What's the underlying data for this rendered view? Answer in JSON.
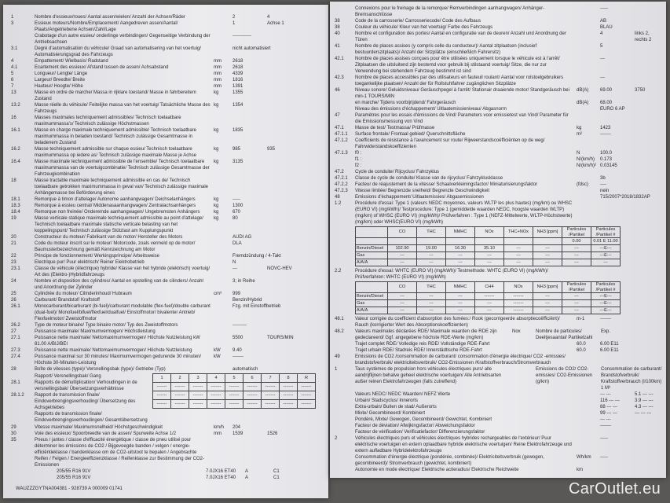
{
  "left": {
    "rows": [
      {
        "n": "1",
        "t": "Nombre d'essieux/roues/ Aantal assen/wielen/ Anzahl der Achsen/Räder",
        "u": "",
        "v": "2",
        "v2": "4"
      },
      {
        "n": "3",
        "t": "Essieux moteurs/Nombre/Emplacement/ Aangedreven assen/Aantal/ Plaats/Angetriebene Achsen/Zahl/Lage",
        "u": "",
        "v": "1",
        "v2": "Achse 1"
      },
      {
        "n": "",
        "t": "Crabotage d'un autre essieu/ onderlinge verbindingen/ Gegenseitige Verbindung der Antriebsachsen",
        "u": "",
        "v": "------------",
        "v2": ""
      },
      {
        "n": "3.1",
        "t": "Degré d'automatisation du véhicule/ Graad van automatisering van het voertuig/ Automatisierungsgrad des Fahrzeugs",
        "u": "",
        "v": "nicht automatisiert",
        "v2": ""
      },
      {
        "n": "4",
        "t": "Empattement/ Wielbasis/ Radstand",
        "u": "mm",
        "v": "2618",
        "v2": ""
      },
      {
        "n": "4.1",
        "t": "Ecartement des essieux/ Afstand tussen de assen/ Achsabstand",
        "u": "mm",
        "v": "2618",
        "v2": ""
      },
      {
        "n": "5",
        "t": "Longueur/ Lengte/ Länge",
        "u": "mm",
        "v": "4339",
        "v2": ""
      },
      {
        "n": "6",
        "t": "Largeur/ Breedte/ Breite",
        "u": "mm",
        "v": "1816",
        "v2": ""
      },
      {
        "n": "7",
        "t": "Hauteur/ Hoogte/ Höhe",
        "u": "mm",
        "v": "1391",
        "v2": ""
      },
      {
        "n": "13",
        "t": "Masse en ordre de marche/ Massa in rijklare toestand/ Masse in fahrbereitem Zustand",
        "u": "kg",
        "v": "1355",
        "v2": ""
      },
      {
        "n": "13.2",
        "t": "Masse réelle du véhicule/ Feitelijke massa van het voertuig/ Tatsächliche Masse des Fahrzeugs",
        "u": "kg",
        "v": "1354",
        "v2": ""
      },
      {
        "n": "16",
        "t": "Masses maximales techniquement admissibles/ Technisch toelaatbare maximummassa's/ Technisch zulässige Höchstmassen",
        "u": "",
        "v": "",
        "v2": ""
      },
      {
        "n": "16.1",
        "t": "Masse en charge maximale techniquement admissible/ Technisch toelaatbare maximummassa in beladen toestand/ Technisch zulässige Gesamtmasse in beladenem Zustand",
        "u": "kg",
        "v": "1835",
        "v2": ""
      },
      {
        "n": "16.2",
        "t": "Masse techniquement admissible sur chaque essieu/ Technisch toelaatbare maximummassa op iedere as/ Technisch zulässige maximale Masse je Achse",
        "u": "kg",
        "v": "985",
        "v2": "935"
      },
      {
        "n": "16.4",
        "t": "Masse maximale techniquement admissible de l'ensemble/ Technisch toelaatbare maximummassa van de voertuigcombinatie/ Technisch zulässige Gesamtmasse der Fahrzeugkombination",
        "u": "kg",
        "v": "3135",
        "v2": ""
      },
      {
        "n": "18",
        "t": "Masse tractable maximale techniquement admissible en cas de/ Technisch toelaatbare getrokken maximummassa in geval van/ Technisch zulässige maximale Anhängemasse bei Beförderung eines",
        "u": "",
        "v": "",
        "v2": ""
      },
      {
        "n": "18.1",
        "t": "Remorque à timon d'attelage/ Autonome aanhangwagen/ Deichselanhängers",
        "u": "kg",
        "v": "-----",
        "v2": ""
      },
      {
        "n": "18.3",
        "t": "Remorque à essieu central/ Middenasaanhangwagen/ Zentralachsanhängers",
        "u": "kg",
        "v": "1300",
        "v2": ""
      },
      {
        "n": "18.4",
        "t": "Remorque non freinée/ Onderemde aanhangwagen/ Ungebremsten Anhängers",
        "u": "kg",
        "v": "670",
        "v2": ""
      },
      {
        "n": "19",
        "t": "Masse verticale statique maximale techniquement admissible au point d'attelage/ Technisch toelaatbare maximale statische verticale belasting van het koppelingspunt/ Technisch zulässige Stützlast am Kupplungspunkt",
        "u": "kg",
        "v": "80",
        "v2": ""
      },
      {
        "n": "20",
        "t": "Constructeur du moteur/ Fabrikant van de motor/ Hersteller des Motors",
        "u": "",
        "v": "AUDI AG",
        "v2": ""
      },
      {
        "n": "21",
        "t": "Code du moteur inscrit sur le moteur/ Motorcode, zoals vermeld op de motor/ Baumusterbezeichnung gemäß Kennzeichnung am Motor",
        "u": "",
        "v": "DLA",
        "v2": ""
      },
      {
        "n": "22",
        "t": "Principe de fonctionnement/ Werkingsprincipe/ Arbeitsweise",
        "u": "",
        "v": "Fremdzündung / 4-Takt",
        "v2": ""
      },
      {
        "n": "23",
        "t": "Electrique pur/ Puur elektrisch/ Reiner Elektrobetrieb",
        "u": "",
        "v": "N",
        "v2": ""
      },
      {
        "n": "23.1",
        "t": "Classe de véhicule (électrique) hybride/ Klasse van het hybride (elektrisch) voertuig/ Art des (Elektro-)Hybridfahrzeugs",
        "u": "",
        "v": "---",
        "v2": "NOVC-HEV"
      },
      {
        "n": "24",
        "t": "Nombre et disposition des cylindres/ Aantal en opstelling van de cilinders/ Anzahl und Anordnung der Zylinder",
        "u": "",
        "v": "3; in Reihe",
        "v2": ""
      },
      {
        "n": "25",
        "t": "Cylindrée du moteur/ Cilinderinhoud/ Hubraum",
        "u": "cm³",
        "v": "999",
        "v2": ""
      },
      {
        "n": "26",
        "t": "Carburant/ Brandstof/ Kraftstoff",
        "u": "",
        "v": "Benzin/Hybrid",
        "v2": ""
      },
      {
        "n": "26.1",
        "t": "Monocarburant/bicarburant (bi-fuel)/carburant modulable (flex-fuel)/double carburant (dual-fuel)/ Monofuel/bifuel/flexfuel/dualfuel/ Einstoffmotor/ bivalenter Antrieb/ Flexfuelmotor/ Zweistoffmotor",
        "u": "",
        "v": "Fzg. mit Einstoffbetrieb",
        "v2": ""
      },
      {
        "n": "26.2",
        "t": "Type de moteur binaire/ Type binaire motor/ Typ des Zweistoffmotors",
        "u": "",
        "v": "---------",
        "v2": ""
      },
      {
        "n": "27",
        "t": "Puissance maximale/ Maximumvermogen/ Höchstleistung",
        "u": "",
        "v": "",
        "v2": ""
      },
      {
        "n": "27.1",
        "t": "Puissance nette maximale/ Nettomaximumvermogen/ Höchste Nutzleistung kW 81.00 A/BIJ/BEI",
        "u": "",
        "v": "5500",
        "v2": "TOURS/MIN"
      },
      {
        "n": "27.3",
        "t": "Puissance nette maximale/ Nettomaximumvermogen/ Höchste Nutzleistung",
        "u": "kW",
        "v": "9.40",
        "v2": ""
      },
      {
        "n": "27.4",
        "t": "Puissance maximal sur 30 minutes/ Maximumvermogen gedurende 30 minuten/ Höchste 30-Minuten-Leistung",
        "u": "kW",
        "v": "-------",
        "v2": ""
      },
      {
        "n": "28",
        "t": "Boîte de vitesses (type)/ Versnellingsbak (type)/ Getriebe (Typ)",
        "u": "",
        "v": "automatisch",
        "v2": ""
      }
    ],
    "gear_rows": [
      {
        "n": "",
        "t": "Rapport/ Versnellingsbak/ Gang"
      },
      {
        "n": "28.1",
        "t": "Rapports de démultiplication/ Verhoudingen in de versnellingsbak/ Übersetzungsverhältnisse"
      },
      {
        "n": "28.1.2",
        "t": "Rapport de transmission finale/ Eindoverbrengingsverhouding/ Übersetzung des Achsgetriebes"
      },
      {
        "n": "",
        "t": "Rapports de transmission finale/ Eindoverbrengingsverhoudingen/ Gesamtübersetzung"
      }
    ],
    "gear_table": {
      "headers": [
        "1",
        "2",
        "3",
        "4",
        "5",
        "6",
        "7",
        "8",
        "R"
      ],
      "rows": [
        [
          "-------",
          "-------",
          "-------",
          "-------",
          "-------",
          "-------",
          "-------",
          "-------",
          "-------"
        ],
        [
          "-------",
          "-------",
          "-------",
          "-------",
          "-------",
          "-------",
          "-------",
          "-------",
          "-------"
        ],
        [
          "-------",
          "-------",
          "-------",
          "-------",
          "-------",
          "-------",
          "-------",
          "-------",
          "-------"
        ]
      ]
    },
    "rows2": [
      {
        "n": "29",
        "t": "Vitesse maximale/ Maximumsnelheid/ Höchstgeschwindigkeit",
        "u": "km/h",
        "v": "204",
        "v2": ""
      },
      {
        "n": "30",
        "t": "Voie des essieux/ Spoorbreedte van de assen/ Spurweite Achse 1/2",
        "u": "mm",
        "v": "1539",
        "v2": "1526"
      },
      {
        "n": "35",
        "t": "Pneus / jantes / classe d'efficacité énergétique / classe de pneu utilisé pour déterminer les émissions de CO2 / Bijgevoegde banden / velgen / energie-efficiëntieklasse / bandenklasse om de CO2-uitstoot te bepalen / Angebrachte Reifen / Felgen / Energieeffizienzklasse / Reifenklasse zur Bestimmung der CO2-Emissionen",
        "u": "",
        "v": "",
        "v2": ""
      }
    ],
    "tyres": [
      {
        "size": "205/55 R16 91V",
        "rim": "7.0JX16 ET40",
        "class": "A",
        "tyre_class": "C1"
      },
      {
        "size": "205/55 R16 91V",
        "rim": "7.0JX16 ET40",
        "class": "A",
        "tyre_class": "C1"
      }
    ],
    "vin_line": "WAUZZZGYTNA004381 - 928739 A 000009    01741"
  },
  "right": {
    "rows": [
      {
        "n": "",
        "t": "Connexions pour le freinage de la remorque/ Remverbindingen aanhangwagen/ Anhänger-Bremsanschlüsse",
        "u": "",
        "v": "-----",
        "v2": ""
      },
      {
        "n": "38",
        "t": "Code de la carrosserie/ Carrosseriecode/ Code des Aufbaus",
        "u": "",
        "v": "AB",
        "v2": ""
      },
      {
        "n": "38",
        "t": "Couleur du véhicule/ Kleur van het voertuig/ Farbe des Fahrzeugs",
        "u": "",
        "v": "BLAU",
        "v2": ""
      },
      {
        "n": "40",
        "t": "Nombre et configuration des portes/ Aantal en configuratie van de deuren/ Anzahl und Anordnung der Türen",
        "u": "",
        "v": "4",
        "v2": "links 2, rechts 2"
      },
      {
        "n": "41",
        "t": "Nombre de places assises (y compris celle du conducteur)/ Aantal zitplaatsen (inclusief bestuurderszitplaats)/ Anzahl der Sitzplätze (einschließlich Fahrersitz)",
        "u": "",
        "v": "5",
        "v2": ""
      },
      {
        "n": "42.1",
        "t": "Nombre de places assises conçues pour être utilisées uniquement lorsque le véhicule est à l'arrêt/ Zitplaatsen die uitsluitend zijn bestemd voor gebruik bij stilstaand voertuig/ Sitze, die nur zur Verwendung bei stehendem Fahrzeug bestimmt ist sind",
        "u": "",
        "v": "---",
        "v2": ""
      },
      {
        "n": "42.3",
        "t": "Nombre de places accessibles par des utilisateurs en fauteuil roulant/ Aantal voor rolstoelgebruikers toegankelijke plaatsen/ Anzahl der für Rollstuhlfahrer zugänglichen Sitzplätze",
        "u": "",
        "v": "---",
        "v2": ""
      },
      {
        "n": "46",
        "t": "Niveau sonore/ Geluidsniveau/ Geräuschpegel à l'arrêt/ Stationair draaiende motor/ Standgeräusch bei min-1 TOURS/MIN",
        "u": "dB(A)",
        "v": "69.00",
        "v2": "3750"
      },
      {
        "n": "",
        "t": "en marche/ Tijdens voorbijrijdend/ Fahrgeräusch",
        "u": "dB(A)",
        "v": "68.00",
        "v2": ""
      },
      {
        "n": "",
        "t": "Niveau des émissions d'échappement/ Uitlaatemissieniveau/ Abgasnorm",
        "u": "",
        "v": "EURO 6 AP",
        "v2": ""
      },
      {
        "n": "47",
        "t": "Paramètres pour les essais d'émissions de Vind/ Parameters voor emissietest van Vind/ Parameter für die Emissionsmessung von Vind",
        "u": "",
        "v": "",
        "v2": ""
      },
      {
        "n": "47.1",
        "t": "Masse de test/ Testmassa/ Prüfmasse",
        "u": "kg",
        "v": "1423",
        "v2": ""
      },
      {
        "n": "47.1.1",
        "t": "Surface frontale/ Frontaal gebied/ Querschnittsfläche",
        "u": "m²",
        "v": "-------",
        "v2": ""
      },
      {
        "n": "47.1.2",
        "t": "Coefficients de résistance à l'avancement sur route/ Rijweerstandscoëfficiënten op de weg/ Fahrwiderstandskoeffizienten",
        "u": "",
        "v": "",
        "v2": ""
      },
      {
        "n": "47.1.3",
        "t": "f0 :",
        "u": "N",
        "v": "100.0",
        "v2": ""
      },
      {
        "n": "",
        "t": "f1 :",
        "u": "N/(km/h)",
        "v": "0.173",
        "v2": ""
      },
      {
        "n": "",
        "t": "f2 :",
        "u": "N/(km/h)²",
        "v": "0.03145",
        "v2": ""
      },
      {
        "n": "47.2",
        "t": "Cycle de conduite/ Rijcyclus/ Fahrzyklus",
        "u": "",
        "v": "",
        "v2": ""
      },
      {
        "n": "47.2.1",
        "t": "Classe de cycle de conduite/ Klasse van de rijcyclus/ Fahrzyklusklasse",
        "u": "",
        "v": "3b",
        "v2": ""
      },
      {
        "n": "47.2.2",
        "t": "Facteur de réajustement de la vitesse/ Schaalverkleiningsfactor/ Miniaturisierungsfaktor",
        "u": "(fdsc)",
        "v": "----",
        "v2": ""
      },
      {
        "n": "47.2.3",
        "t": "Vitesse limitée/ Begrenzde snelheid/ Begrenzte Geschwindigkeit",
        "u": "",
        "v": "nein",
        "v2": ""
      },
      {
        "n": "48",
        "t": "Emissions d'échappement/ Uitlaatemissies/ Abgasemissionen",
        "u": "",
        "v": "715/2007*2018/1832AP",
        "v2": ""
      },
      {
        "n": "1.2",
        "t": "Procédure d'essai: Type 1 (valeurs NEDC moyennes, valeurs WLTP les plus hautes) (mg/km) ou WHSC (EURO VI) (mg/kWh)/ Testprocedure: Type 1 (gemiddelde waarden NEDC, hoogste waarden WLTP) (mg/km) of WHSC (EURO VI) (mg/kWh)/ Prüfverfahren : Type 1 (NEFZ-Mittelwerte, WLTP-Höchstwerte) (mg/km) oder WHSC(EURO VI) (mg/kWh)",
        "u": "",
        "v": "",
        "v2": ""
      }
    ],
    "table1": {
      "headers": [
        "",
        "CO",
        "THC",
        "NMHC",
        "NOx",
        "THC+NOx",
        "NH3 [ppm]",
        "Particules /Partikel",
        "Particules /Partikel #"
      ],
      "rows": [
        [
          "",
          "",
          "",
          "",
          "",
          "",
          "",
          "0.00",
          "0.01 E 11.00"
        ],
        [
          "Benzin/Diesel",
          "102.90",
          "19.00",
          "16.30",
          "35.10",
          "---",
          "---",
          "---",
          "---E---"
        ],
        [
          "Gas",
          "---",
          "---",
          "---",
          "---",
          "---",
          "---",
          "---",
          "---E---"
        ],
        [
          "A/A/A",
          "---",
          "---",
          "---",
          "---",
          "---",
          "---",
          "---",
          "---"
        ]
      ]
    },
    "proc2": {
      "n": "2.2",
      "t": "Procédure d'essai: WHTC (EURO VI) (mg/kWh)/ Testmethode: WHTC (EURO VI) (mg/kWh)/ Prüfverfahren: WHTC (EURO VI) (mg/kWh)",
      "u": "",
      "v": "",
      "v2": ""
    },
    "table2": {
      "headers": [
        "",
        "CO",
        "THC",
        "NMHC",
        "CH4",
        "NOx",
        "NH3 [ppm]",
        "Particules /Partikel",
        "Particules /Partikel #"
      ],
      "rows": [
        [
          "Benzin/Diesel",
          "---",
          "---",
          "---",
          "-------",
          "-------",
          "---",
          "---",
          "---E---"
        ],
        [
          "Gas",
          "---",
          "---",
          "---",
          "---",
          "-------",
          "---",
          "---",
          "---E---"
        ],
        [
          "A/A/A",
          "---",
          "---",
          "---",
          "---",
          "-------",
          "---",
          "---",
          "---E---"
        ]
      ]
    },
    "rows2": [
      {
        "n": "48.1",
        "t": "Valeur corrigée du coefficient d'absorption des fumées:/ Rook (gecorrigeerde absorptiecoëfficiënt)/ Rauch (korrigierter Wert des Absorptionskoeffizienten)",
        "u": "m-1",
        "v": "-------",
        "v2": ""
      },
      {
        "n": "48.2",
        "t": "Valeurs maximales déclarées RDE/ Maximale waarden die RDE zijn gedeclareerd/ Ggf. angegebene höchste RDE-Werte (mg/km)",
        "u": "Nox",
        "v": "Nombre de particules/ Deeltjesaantal/ Partikelzahl",
        "v2": "Exp."
      },
      {
        "n": "",
        "t": "Trajet complet RDE/ Volledige reis RDE/ Vollständige RDE-Fahrt",
        "u": "60.0",
        "v": "6.00 E11",
        "v2": ""
      },
      {
        "n": "",
        "t": "Trajet urbain RDE/ Stadreis RDE/ Innerstädtische RDE-Fahrt",
        "u": "60.0",
        "v": "6.00 E11",
        "v2": ""
      },
      {
        "n": "49",
        "t": "Emissions de CO2 /consommation de carburant/ consommation d'énergie électrique/ CO2 -emissies/ brandstofverbruik/ elektriciteitsverbruik/ CO2-Emissionen /Kraftstoffverbrauch/Stromverbrauch",
        "u": "",
        "v": "",
        "v2": ""
      },
      {
        "n": "1",
        "t": "Taus systèmes de propulsion hors véhicules électriques purs/ alle aandrijflijnen behalve geheel elektrische voertuigen/ Alle Antriebsarten außer reinen Elektrofahrzeugen (falls zutreffend)",
        "u": "",
        "v": "Emissions de CO2/ CO2-emissies/ CO2-Emissionen (g/km)",
        "v2": "Consommation de carburant/ Brandstofverbruik/ Kraftstoffverbrauch (l/100km)  1  M³"
      },
      {
        "n": "",
        "t": "Valeurs NEDC/ NEDC Waarden/ NEFZ Werte",
        "u": "",
        "v": "--- ---",
        "v2": "5.1 --- ---"
      },
      {
        "n": "",
        "t": "Urbain/ Stadscyclus/ Innerorts",
        "u": "",
        "v": "116 --- ---",
        "v2": "3.9 --- ---"
      },
      {
        "n": "",
        "t": "Extra-urbain/ Buiten de stad/ Außerorts",
        "u": "",
        "v": "88 --- ---",
        "v2": "4.3 --- ---"
      },
      {
        "n": "",
        "t": "Mixte/ Gecombineerd/ Kombiniert",
        "u": "",
        "v": "99 --- ---",
        "v2": "--- --- ---"
      },
      {
        "n": "",
        "t": "Pondéré, Mixte/ Gewogen, Gecombineerd/ Gewichtet, Kombiniert",
        "u": "",
        "v": "--- ---",
        "v2": ""
      },
      {
        "n": "",
        "t": "Facteur de déviation/ Afwijkingsfactor/ Abweichungsfaktor",
        "u": "",
        "v": "-------",
        "v2": ""
      },
      {
        "n": "",
        "t": "Facteur de vérification/ Verificatiefactor/ Differenzierungsfaktor",
        "u": "",
        "v": "",
        "v2": ""
      },
      {
        "n": "2",
        "t": "Véhicules électriques purs et véhicules électriques hybrides rechargeables de l'extérieur/ Puur elektrische voertuigen en extern oplaadbare hybride elektrische voertuigen/ Reine Elektrofahrzeuge und extern aufladbare Hybridelektrofahrzeuge",
        "u": "",
        "v": "-----",
        "v2": ""
      },
      {
        "n": "",
        "t": "Consommation d'énergie électrique (pondérée, combinée)/ Elektriciteitsverbruik (gewogen, gecombineerd)/ Stromverbrauch (gewichtet, kombiniert)",
        "u": "Wh/km",
        "v": "-----",
        "v2": ""
      },
      {
        "n": "",
        "t": "Autonomie en mode électrique/ Elektrische actieradius/ Elektrische Reichweite",
        "u": "km",
        "v": "",
        "v2": ""
      }
    ]
  },
  "watermark": "CarOutlet.eu"
}
